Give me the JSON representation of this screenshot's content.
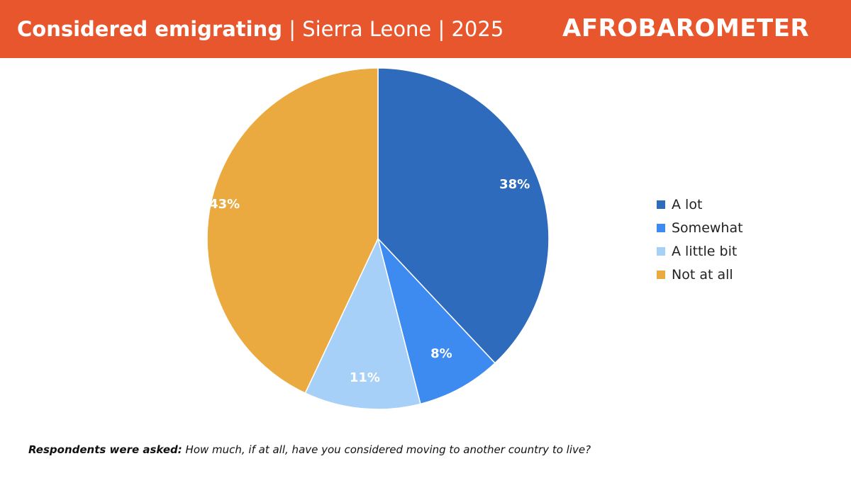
{
  "header": {
    "title_bold": "Considered emigrating",
    "title_rest": " | Sierra Leone | 2025",
    "logo_text": "AFROBAROMETER",
    "background_color": "#e8562d"
  },
  "chart_data": {
    "type": "pie",
    "title": "Considered emigrating | Sierra Leone | 2025",
    "categories": [
      "A lot",
      "Somewhat",
      "A little bit",
      "Not at all"
    ],
    "values": [
      38,
      8,
      11,
      43
    ],
    "labels": [
      "38%",
      "8%",
      "11%",
      "43%"
    ],
    "colors": [
      "#2e6bbd",
      "#3d8af0",
      "#a6d0f7",
      "#eaaa3f"
    ],
    "start_angle_deg": 0,
    "direction": "clockwise",
    "legend_position": "right"
  },
  "footnote": {
    "lead": "Respondents were asked:",
    "question": " How much, if at all, have you considered moving to another country to live?"
  }
}
